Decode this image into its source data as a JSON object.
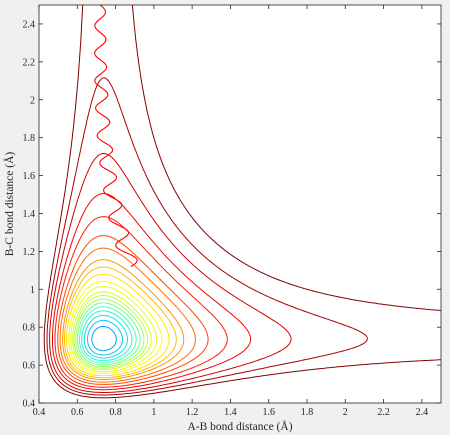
{
  "chart_data": {
    "type": "contour",
    "xlabel": "A-B bond distance (Å)",
    "ylabel": "B-C bond distance (Å)",
    "xlim": [
      0.4,
      2.5
    ],
    "ylim": [
      0.4,
      2.5
    ],
    "x_ticks": [
      "0.4",
      "0.6",
      "0.8",
      "1",
      "1.2",
      "1.4",
      "1.6",
      "1.8",
      "2",
      "2.2",
      "2.4"
    ],
    "y_ticks": [
      "0.4",
      "0.6",
      "0.8",
      "1",
      "1.2",
      "1.4",
      "1.6",
      "1.8",
      "2",
      "2.2",
      "2.4"
    ],
    "grid": false,
    "colormap": "jet",
    "colormap_colors": [
      "#000080",
      "#0000ff",
      "#00bfff",
      "#40ffbf",
      "#bfff40",
      "#ffff00",
      "#ff8000",
      "#ff0000",
      "#800000"
    ],
    "trajectory_color": "#ff0000",
    "contour_levels": [
      0.05,
      0.1,
      0.15,
      0.2,
      0.3,
      0.4,
      0.5,
      0.6,
      0.7,
      0.8,
      0.9,
      1.0,
      1.1,
      1.2,
      1.3,
      1.45,
      1.6,
      1.8,
      2.0,
      2.2,
      2.5,
      2.8,
      3.2,
      3.6,
      4.1,
      4.6,
      5.2
    ],
    "trajectory": {
      "x_start": 0.72,
      "x_end": 0.88,
      "y_start": 2.5,
      "y_end": 1.12,
      "start_offset": 0.05,
      "amplitude": 0.045,
      "half_periods": 19
    }
  }
}
